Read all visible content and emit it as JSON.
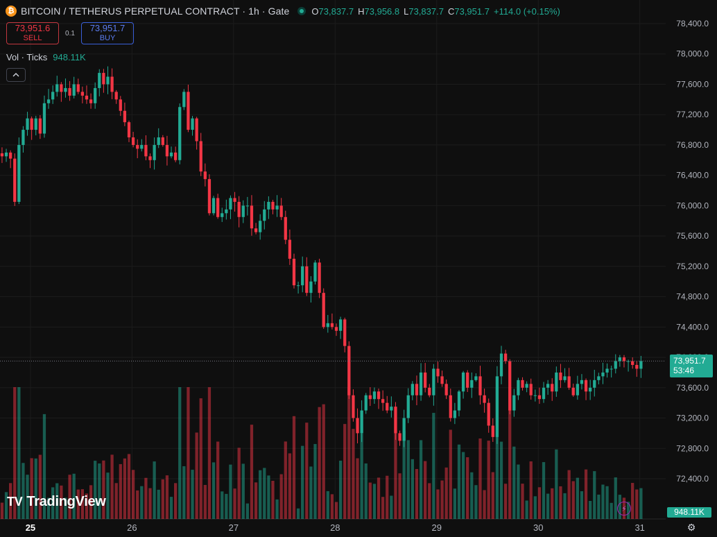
{
  "header": {
    "title": "BITCOIN / TETHERUS PERPETUAL CONTRACT · 1h · Gate",
    "coin_symbol": "₿",
    "ohlc": {
      "o_label": "O",
      "o": "73,837.7",
      "h_label": "H",
      "h": "73,956.8",
      "l_label": "L",
      "l": "73,837.7",
      "c_label": "C",
      "c": "73,951.7",
      "change": "+114.0 (+0.15%)"
    }
  },
  "trade": {
    "sell_price": "73,951.6",
    "sell_label": "SELL",
    "spread": "0.1",
    "buy_price": "73,951.7",
    "buy_label": "BUY"
  },
  "volume_legend": {
    "label": "Vol · Ticks",
    "value": "948.11K"
  },
  "collapse_icon": "chevron-up",
  "logo": {
    "text": "TradingView",
    "mark": "TV"
  },
  "price_tag": {
    "price": "73,951.7",
    "countdown": "53:46"
  },
  "volume_tag": "948.11K",
  "colors": {
    "up": "#22ab94",
    "down": "#f23645",
    "background": "#0f0f0f",
    "grid": "#1e1e1e",
    "text": "#d1d4dc"
  },
  "chart_data": {
    "type": "candlestick",
    "x_ticks": [
      "25",
      "26",
      "27",
      "28",
      "29",
      "30",
      "31"
    ],
    "y_ticks": [
      "78,400.0",
      "78,000.0",
      "77,600.0",
      "77,200.0",
      "76,800.0",
      "76,400.0",
      "76,000.0",
      "75,600.0",
      "75,200.0",
      "74,800.0",
      "74,400.0",
      "74,000.0",
      "73,600.0",
      "73,200.0",
      "72,800.0",
      "72,400.0"
    ],
    "y_range": [
      72150,
      78500
    ],
    "last_price": 73951.7,
    "x_range_days": [
      24.7,
      31.05
    ],
    "candle_interval_hours": 1,
    "first_candle_day": 24.72,
    "close": [
      76650,
      76700,
      76620,
      76050,
      76800,
      77000,
      77150,
      77000,
      77150,
      76950,
      77350,
      77400,
      77500,
      77600,
      77500,
      77550,
      77450,
      77600,
      77500,
      77450,
      77400,
      77350,
      77550,
      77750,
      77600,
      77700,
      77500,
      77400,
      77250,
      77100,
      76900,
      76800,
      76750,
      76800,
      76650,
      76600,
      76800,
      76900,
      76800,
      76650,
      76700,
      76600,
      77300,
      77500,
      77000,
      77150,
      76850,
      76450,
      76350,
      75900,
      76100,
      75850,
      75900,
      75950,
      76100,
      76050,
      75850,
      76000,
      76000,
      75700,
      75650,
      75800,
      75950,
      76050,
      75950,
      76000,
      75850,
      75550,
      75300,
      74950,
      74950,
      75200,
      74850,
      75000,
      75250,
      74850,
      74400,
      74450,
      74400,
      74350,
      74500,
      74150,
      73500,
      73200,
      73000,
      73300,
      73500,
      73450,
      73550,
      73450,
      73400,
      73300,
      73350,
      73000,
      72900,
      73200,
      73500,
      73650,
      73500,
      73800,
      73600,
      73500,
      73850,
      73750,
      73650,
      73500,
      73200,
      73300,
      73550,
      73800,
      73600,
      73700,
      73750,
      73500,
      73400,
      73100,
      72950,
      73750,
      74050,
      73950,
      73300,
      73500,
      73700,
      73600,
      73650,
      73500,
      73500,
      73450,
      73600,
      73650,
      73550,
      73800,
      73700,
      73750,
      73600,
      73500,
      73650,
      73700,
      73550,
      73600,
      73700,
      73750,
      73800,
      73850,
      73850,
      73950,
      74000,
      73950,
      73950,
      73900,
      73850,
      73951.7
    ],
    "volume_scale_note": "relative"
  }
}
